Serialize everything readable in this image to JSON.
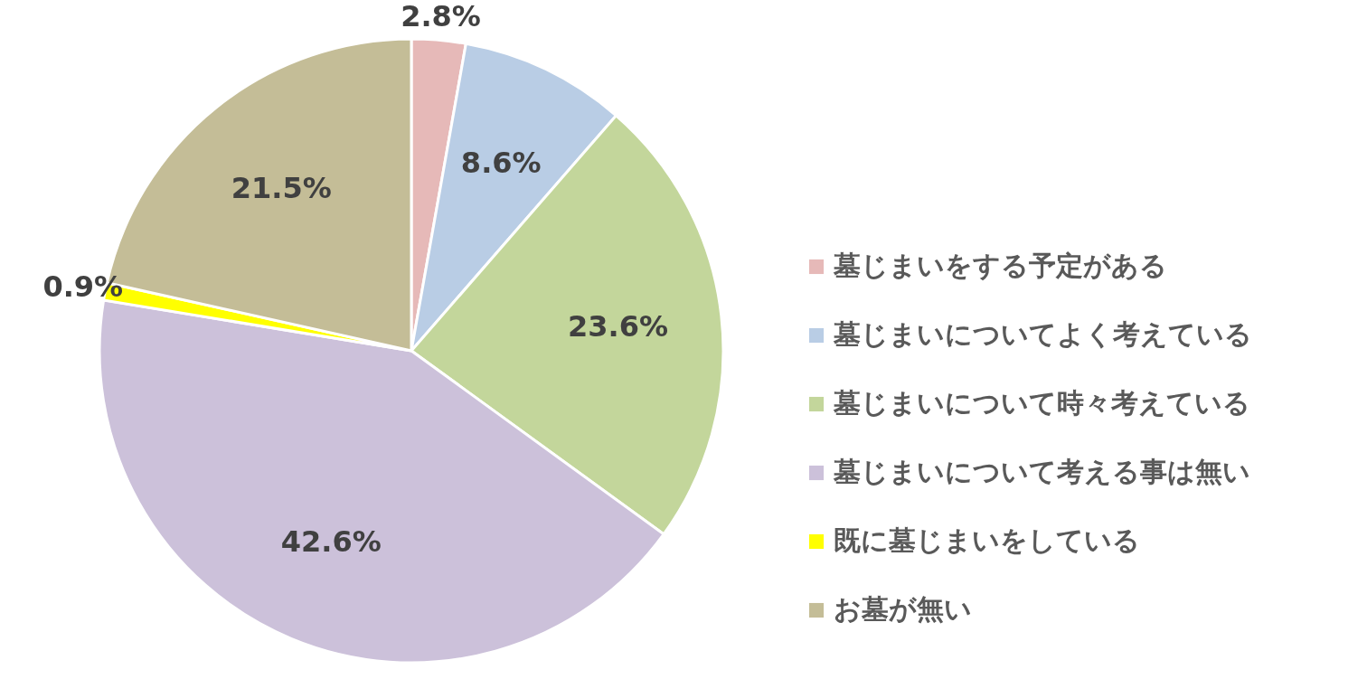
{
  "chart_data": {
    "type": "pie",
    "categories": [
      "墓じまいをする予定がある",
      "墓じまいについてよく考えている",
      "墓じまいについて時々考えている",
      "墓じまいについて考える事は無い",
      "既に墓じまいをしている",
      "お墓が無い"
    ],
    "values": [
      2.8,
      8.6,
      23.6,
      42.6,
      0.9,
      21.5
    ],
    "colors": [
      "#e6b9b8",
      "#b9cde5",
      "#c3d69b",
      "#ccc1da",
      "#ffff00",
      "#c4bd97"
    ],
    "value_labels": [
      "2.8%",
      "8.6%",
      "23.6%",
      "42.6%",
      "0.9%",
      "21.5%"
    ],
    "legend": "right"
  }
}
